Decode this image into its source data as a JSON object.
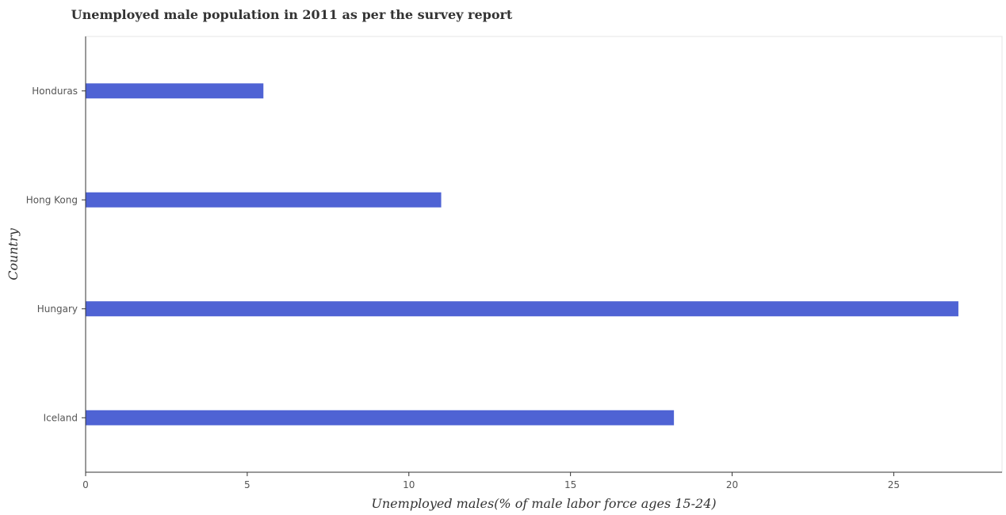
{
  "chart_data": {
    "type": "bar",
    "orientation": "horizontal",
    "title": "Unemployed male population in 2011 as per the survey report",
    "xlabel": "Unemployed males(% of male labor force ages 15-24)",
    "ylabel": "Country",
    "categories": [
      "Honduras",
      "Hong Kong",
      "Hungary",
      "Iceland"
    ],
    "values": [
      5.5,
      11.0,
      27.0,
      18.2
    ],
    "xlim": [
      0,
      28.35
    ],
    "xticks": [
      0,
      5,
      10,
      15,
      20,
      25
    ],
    "xtick_labels": [
      "0",
      "5",
      "10",
      "15",
      "20",
      "25"
    ],
    "grid": false,
    "bar_color": "#4f63d4"
  }
}
